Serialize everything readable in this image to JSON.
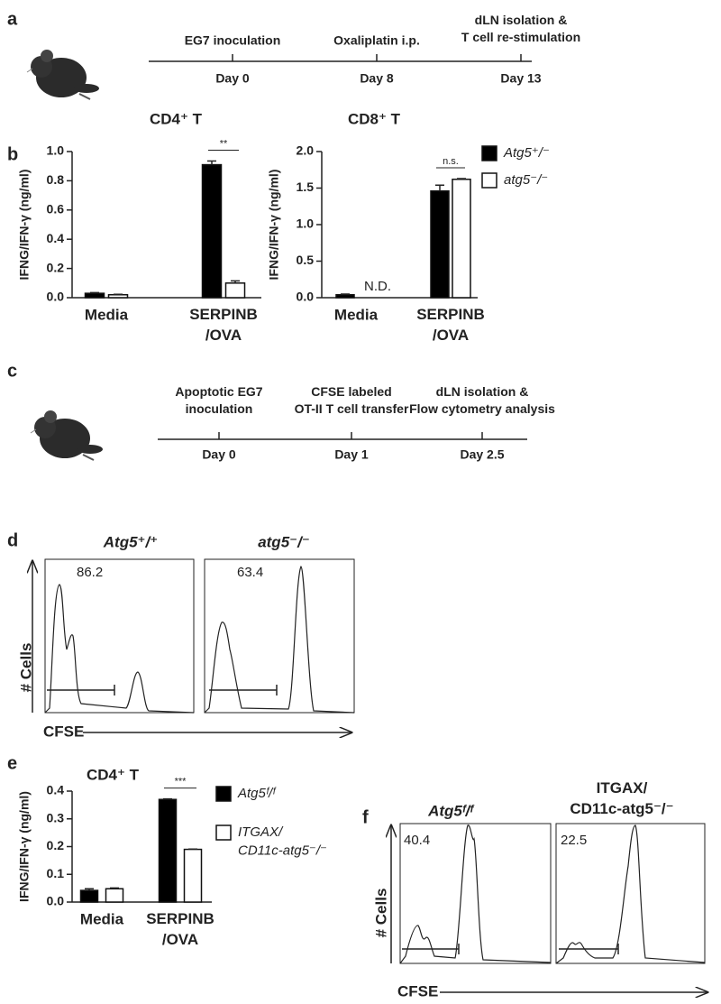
{
  "panel_labels": [
    "a",
    "b",
    "c",
    "d",
    "e",
    "f"
  ],
  "timeline_a": {
    "events": [
      {
        "label": "EG7 inoculation",
        "day": "Day 0"
      },
      {
        "label": "Oxaliplatin i.p.",
        "day": "Day 8"
      },
      {
        "label": "dLN isolation &\nT cell re-stimulation",
        "day": "Day 13"
      }
    ]
  },
  "timeline_c": {
    "events": [
      {
        "label": "Apoptotic EG7\ninoculation",
        "day": "Day 0"
      },
      {
        "label": "CFSE labeled\nOT-II T cell transfer",
        "day": "Day 1"
      },
      {
        "label": "dLN isolation &\nFlow cytometry analysis",
        "day": "Day 2.5"
      }
    ]
  },
  "chart_data": [
    {
      "type": "bar",
      "title": "CD4⁺ T",
      "y_label": "IFNG/IFN-γ (ng/ml)",
      "categories": [
        "Media",
        "SERPINB\n/OVA"
      ],
      "series": [
        {
          "name": "Atg5⁺/⁻",
          "color": "#000000",
          "values": [
            0.03,
            0.91
          ],
          "errors": [
            0.005,
            0.025
          ]
        },
        {
          "name": "atg5⁻/⁻",
          "color": "#ffffff",
          "values": [
            0.02,
            0.1
          ],
          "errors": [
            0.003,
            0.015
          ]
        }
      ],
      "ylim": [
        0,
        1.0
      ],
      "yticks": [
        {
          "value": 0,
          "label": "0.0"
        },
        0.2,
        0.4,
        0.6,
        0.8,
        {
          "value": 1.0,
          "label": "1.0"
        }
      ],
      "annotations": [
        {
          "text": "**",
          "category": 1
        }
      ]
    },
    {
      "type": "bar",
      "title": "CD8⁺  T",
      "y_label": "IFNG/IFN-γ (ng/ml)",
      "categories": [
        "Media",
        "SERPINB\n/OVA"
      ],
      "series": [
        {
          "color": "#000000",
          "values": [
            0.04,
            1.46
          ],
          "errors": [
            0.01,
            0.08
          ]
        },
        {
          "color": "#ffffff",
          "values": [
            null,
            1.62
          ],
          "errors": [
            null,
            0.01
          ]
        }
      ],
      "ylim": [
        0,
        2.0
      ],
      "yticks": [
        {
          "value": 0,
          "label": "0.0"
        },
        0.5,
        {
          "value": 1.0,
          "label": "1.0"
        },
        1.5,
        {
          "value": 2.0,
          "label": "2.0"
        }
      ],
      "annotations": [
        {
          "text": "n.s.",
          "category": 1
        },
        {
          "text": "N.D.",
          "category": 0,
          "series": 1
        }
      ]
    },
    {
      "type": "bar",
      "title": "CD4⁺ T",
      "y_label": "IFNG/IFN-γ (ng/ml)",
      "categories": [
        "Media",
        "SERPINB\n/OVA"
      ],
      "series": [
        {
          "name": "Atg5ᶠ/ᶠ",
          "color": "#000000",
          "values": [
            0.042,
            0.37
          ],
          "errors": [
            0.006,
            0.002
          ]
        },
        {
          "name": "ITGAX/\nCD11c-atg5⁻/⁻",
          "color": "#ffffff",
          "values": [
            0.048,
            0.19
          ],
          "errors": [
            0.003,
            0.001
          ]
        }
      ],
      "ylim": [
        0,
        0.4
      ],
      "yticks": [
        {
          "value": 0,
          "label": "0.0"
        },
        0.1,
        0.2,
        0.3,
        0.4
      ],
      "annotations": [
        {
          "text": "***",
          "category": 1
        }
      ]
    }
  ],
  "flow_d": {
    "y_label": "# Cells",
    "x_label": "CFSE",
    "panels": [
      {
        "title": "Atg5⁺/⁺",
        "gate_value": 86.2
      },
      {
        "title": "atg5⁻/⁻",
        "gate_value": 63.4
      }
    ]
  },
  "flow_f": {
    "y_label": "# Cells",
    "x_label": "CFSE",
    "panels": [
      {
        "title": "Atg5ᶠ/ᶠ",
        "gate_value": 40.4
      },
      {
        "title": "ITGAX/\nCD11c-atg5⁻/⁻",
        "gate_value": 22.5
      }
    ]
  }
}
